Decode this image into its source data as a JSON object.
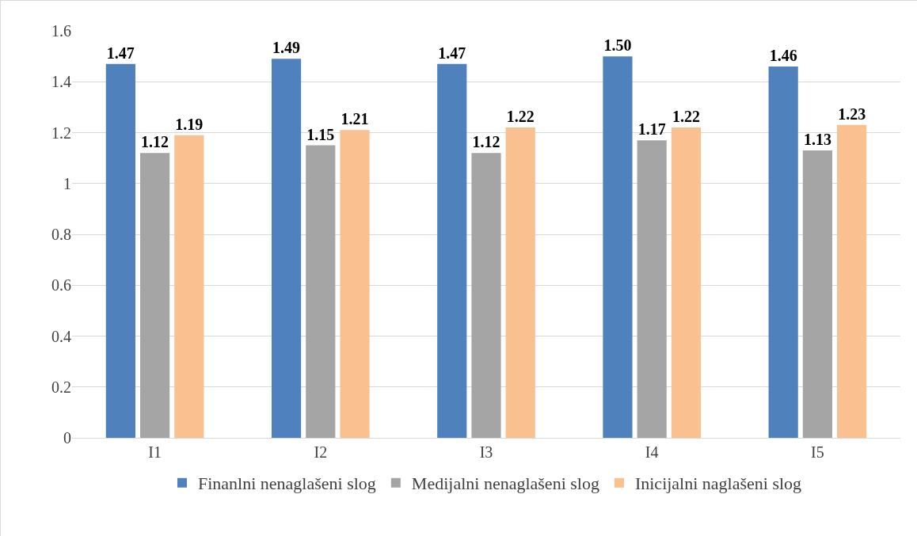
{
  "chart_data": {
    "type": "bar",
    "categories": [
      "I1",
      "I2",
      "I3",
      "I4",
      "I5"
    ],
    "series": [
      {
        "name": "Finanlni nenaglašeni slog",
        "color": "#4f81bd",
        "values": [
          1.47,
          1.49,
          1.47,
          1.5,
          1.46
        ],
        "value_labels": [
          "1.47",
          "1.49",
          "1.47",
          "1.50",
          "1.46"
        ]
      },
      {
        "name": "Medijalni nenaglašeni slog",
        "color": "#a5a5a5",
        "values": [
          1.12,
          1.15,
          1.12,
          1.17,
          1.13
        ],
        "value_labels": [
          "1.12",
          "1.15",
          "1.12",
          "1.17",
          "1.13"
        ]
      },
      {
        "name": "Inicijalni naglašeni slog",
        "color": "#fac090",
        "values": [
          1.19,
          1.21,
          1.22,
          1.22,
          1.23
        ],
        "value_labels": [
          "1.19",
          "1.21",
          "1.22",
          "1.22",
          "1.23"
        ]
      }
    ],
    "ylim": [
      0,
      1.6
    ],
    "yticks": [
      0,
      0.2,
      0.4,
      0.6,
      0.8,
      1,
      1.2,
      1.4,
      1.6
    ],
    "grid": "y",
    "legend": "bottom"
  }
}
